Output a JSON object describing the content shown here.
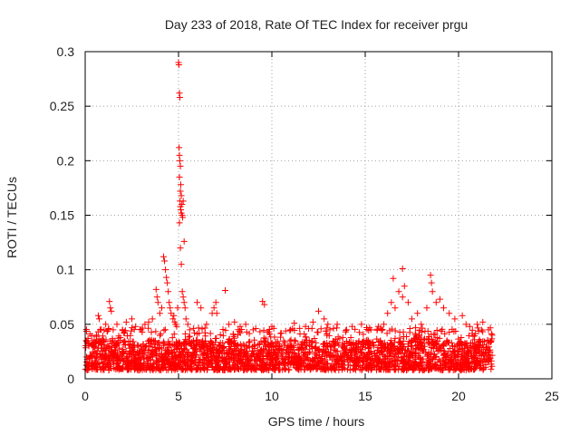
{
  "chart_data": {
    "type": "scatter",
    "title": "Day 233 of 2018, Rate Of TEC Index for receiver prgu",
    "xlabel": "GPS time / hours",
    "ylabel": "ROTI / TECUs",
    "xlim": [
      0,
      25
    ],
    "ylim": [
      0,
      0.3
    ],
    "xticks": [
      "0",
      "5",
      "10",
      "15",
      "20",
      "25"
    ],
    "yticks": [
      "0",
      "0.05",
      "0.1",
      "0.15",
      "0.2",
      "0.25",
      "0.3"
    ],
    "grid": true,
    "marker": "+",
    "colors": {
      "points": "#ff0000",
      "grid": "#a0a0a0",
      "axes": "#000000"
    },
    "x_coverage": [
      0,
      21.8
    ],
    "background_band": {
      "x_range": [
        0,
        21.8
      ],
      "y_typical_range": [
        0.008,
        0.035
      ]
    },
    "points": [
      [
        0.05,
        0.035
      ],
      [
        0.1,
        0.033
      ],
      [
        0.15,
        0.037
      ],
      [
        0.2,
        0.03
      ],
      [
        0.6,
        0.04
      ],
      [
        0.7,
        0.058
      ],
      [
        0.75,
        0.055
      ],
      [
        0.8,
        0.045
      ],
      [
        1.1,
        0.05
      ],
      [
        1.3,
        0.071
      ],
      [
        1.35,
        0.065
      ],
      [
        1.4,
        0.062
      ],
      [
        1.5,
        0.045
      ],
      [
        1.7,
        0.05
      ],
      [
        2.0,
        0.045
      ],
      [
        2.2,
        0.052
      ],
      [
        2.5,
        0.055
      ],
      [
        2.7,
        0.048
      ],
      [
        3.0,
        0.045
      ],
      [
        3.2,
        0.05
      ],
      [
        3.4,
        0.052
      ],
      [
        3.6,
        0.055
      ],
      [
        3.8,
        0.082
      ],
      [
        3.85,
        0.075
      ],
      [
        3.9,
        0.07
      ],
      [
        4.0,
        0.06
      ],
      [
        4.1,
        0.065
      ],
      [
        4.2,
        0.112
      ],
      [
        4.25,
        0.108
      ],
      [
        4.3,
        0.1
      ],
      [
        4.35,
        0.093
      ],
      [
        4.4,
        0.088
      ],
      [
        4.45,
        0.08
      ],
      [
        4.5,
        0.07
      ],
      [
        4.55,
        0.065
      ],
      [
        4.6,
        0.06
      ],
      [
        4.7,
        0.055
      ],
      [
        4.75,
        0.058
      ],
      [
        4.8,
        0.052
      ],
      [
        4.85,
        0.05
      ],
      [
        4.9,
        0.048
      ],
      [
        4.95,
        0.065
      ],
      [
        5.0,
        0.29
      ],
      [
        5.02,
        0.288
      ],
      [
        5.05,
        0.262
      ],
      [
        5.07,
        0.258
      ],
      [
        5.03,
        0.212
      ],
      [
        5.05,
        0.205
      ],
      [
        5.07,
        0.2
      ],
      [
        5.1,
        0.195
      ],
      [
        5.05,
        0.185
      ],
      [
        5.12,
        0.178
      ],
      [
        5.1,
        0.172
      ],
      [
        5.15,
        0.168
      ],
      [
        5.08,
        0.163
      ],
      [
        5.1,
        0.158
      ],
      [
        5.12,
        0.155
      ],
      [
        5.15,
        0.152
      ],
      [
        5.18,
        0.16
      ],
      [
        5.2,
        0.15
      ],
      [
        5.22,
        0.148
      ],
      [
        5.25,
        0.163
      ],
      [
        5.05,
        0.143
      ],
      [
        5.1,
        0.12
      ],
      [
        5.15,
        0.105
      ],
      [
        5.2,
        0.08
      ],
      [
        5.25,
        0.075
      ],
      [
        5.3,
        0.07
      ],
      [
        5.35,
        0.065
      ],
      [
        5.3,
        0.126
      ],
      [
        5.4,
        0.055
      ],
      [
        5.5,
        0.05
      ],
      [
        5.6,
        0.045
      ],
      [
        6.0,
        0.07
      ],
      [
        6.2,
        0.065
      ],
      [
        6.5,
        0.05
      ],
      [
        6.8,
        0.06
      ],
      [
        6.9,
        0.065
      ],
      [
        7.0,
        0.07
      ],
      [
        7.05,
        0.06
      ],
      [
        7.5,
        0.081
      ],
      [
        7.7,
        0.05
      ],
      [
        8.0,
        0.052
      ],
      [
        8.3,
        0.048
      ],
      [
        8.6,
        0.05
      ],
      [
        9.0,
        0.045
      ],
      [
        9.5,
        0.071
      ],
      [
        9.6,
        0.068
      ],
      [
        10.0,
        0.048
      ],
      [
        10.5,
        0.042
      ],
      [
        11.0,
        0.045
      ],
      [
        11.2,
        0.051
      ],
      [
        11.8,
        0.048
      ],
      [
        12.2,
        0.052
      ],
      [
        12.5,
        0.062
      ],
      [
        12.8,
        0.055
      ],
      [
        13.0,
        0.05
      ],
      [
        13.5,
        0.05
      ],
      [
        14.0,
        0.045
      ],
      [
        14.3,
        0.048
      ],
      [
        14.8,
        0.05
      ],
      [
        15.3,
        0.045
      ],
      [
        15.7,
        0.048
      ],
      [
        16.0,
        0.05
      ],
      [
        16.2,
        0.06
      ],
      [
        16.4,
        0.07
      ],
      [
        16.6,
        0.065
      ],
      [
        16.8,
        0.08
      ],
      [
        16.5,
        0.092
      ],
      [
        17.0,
        0.101
      ],
      [
        17.1,
        0.085
      ],
      [
        17.3,
        0.07
      ],
      [
        17.0,
        0.075
      ],
      [
        17.5,
        0.055
      ],
      [
        17.8,
        0.06
      ],
      [
        18.0,
        0.05
      ],
      [
        18.3,
        0.065
      ],
      [
        18.5,
        0.095
      ],
      [
        18.55,
        0.088
      ],
      [
        18.6,
        0.08
      ],
      [
        18.8,
        0.07
      ],
      [
        19.0,
        0.073
      ],
      [
        19.2,
        0.065
      ],
      [
        19.5,
        0.06
      ],
      [
        19.8,
        0.055
      ],
      [
        20.2,
        0.058
      ],
      [
        20.4,
        0.05
      ],
      [
        20.6,
        0.048
      ],
      [
        21.0,
        0.05
      ],
      [
        21.3,
        0.052
      ],
      [
        21.6,
        0.045
      ],
      [
        21.8,
        0.04
      ]
    ]
  }
}
